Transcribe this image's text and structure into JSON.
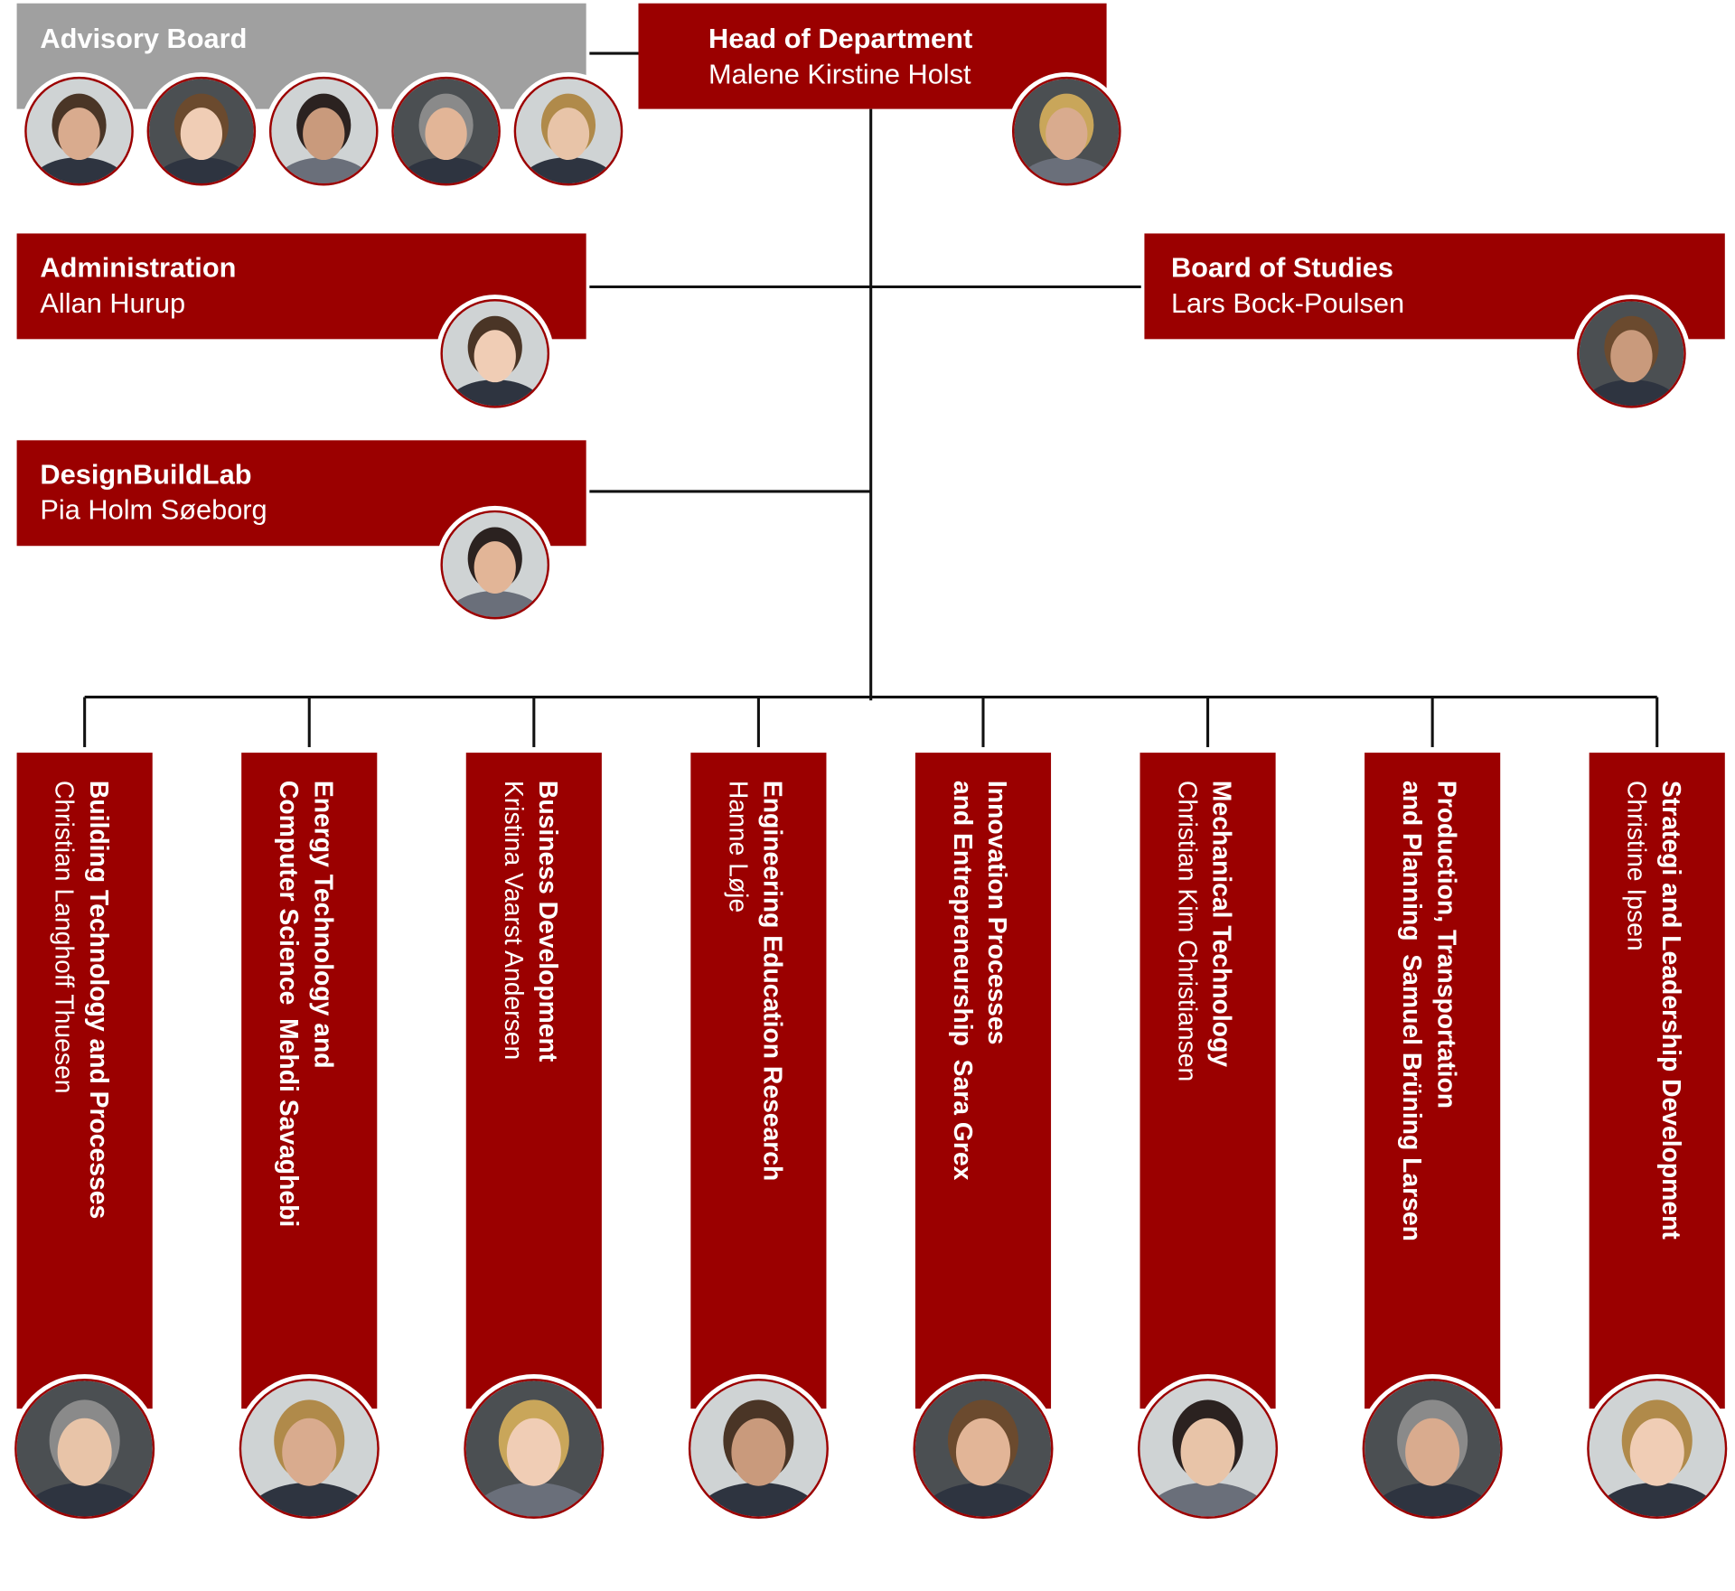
{
  "advisory_board": {
    "title": "Advisory Board"
  },
  "head": {
    "title": "Head of Department",
    "name": "Malene Kirstine Holst"
  },
  "units": [
    {
      "title": "Administration",
      "name": "Allan Hurup"
    },
    {
      "title": "Board of Studies",
      "name": "Lars Bock-Poulsen"
    },
    {
      "title": "DesignBuildLab",
      "name": "Pia Holm Søeborg"
    }
  ],
  "departments": [
    {
      "title_lines": [
        "Building Technology and Processes"
      ],
      "name": "Christian Langhoff Thuesen"
    },
    {
      "title_lines": [
        "Energy Technology and",
        "Computer Science"
      ],
      "name": "Mehdi Savaghebi"
    },
    {
      "title_lines": [
        "Business Development"
      ],
      "name": "Kristina Vaarst Andersen"
    },
    {
      "title_lines": [
        "Engineering Education Research"
      ],
      "name": "Hanne Løje"
    },
    {
      "title_lines": [
        "Innovation Processes",
        "and Entrepreneurship"
      ],
      "name": "Sara Grex"
    },
    {
      "title_lines": [
        "Mechanical Technology"
      ],
      "name": "Christian Kim Christiansen"
    },
    {
      "title_lines": [
        "Production, Transportation",
        "and Planning"
      ],
      "name": "Samuel Brüning Larsen"
    },
    {
      "title_lines": [
        "Strategi and Leadership Development"
      ],
      "name": "Christine Ipsen"
    }
  ]
}
